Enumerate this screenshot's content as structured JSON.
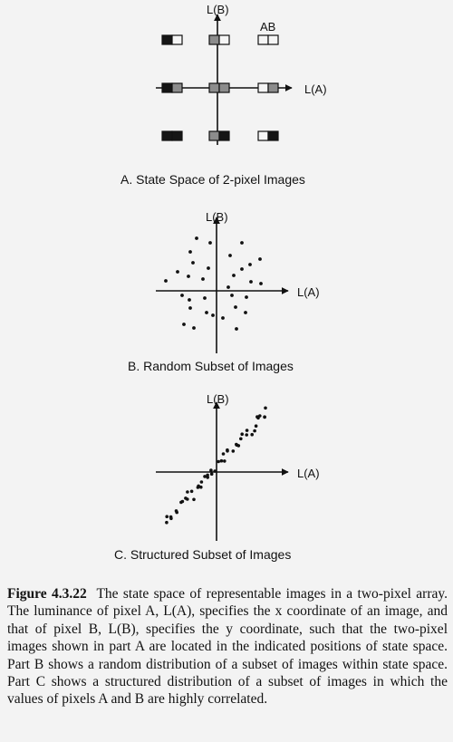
{
  "panels": {
    "a": {
      "caption": "A. State Space of 2-pixel Images",
      "x_axis_label": "L(A)",
      "y_axis_label": "L(B)",
      "pair_label": "AB",
      "levels": [
        "black",
        "gray",
        "white"
      ],
      "colors": {
        "black": "#151515",
        "gray": "#8c8c8c",
        "white": "#f5f5f5"
      },
      "grid_rows_top_to_bottom": [
        [
          [
            "black",
            "white"
          ],
          [
            "gray",
            "white"
          ],
          [
            "white",
            "white"
          ]
        ],
        [
          [
            "black",
            "gray"
          ],
          [
            "gray",
            "gray"
          ],
          [
            "white",
            "gray"
          ]
        ],
        [
          [
            "black",
            "black"
          ],
          [
            "gray",
            "black"
          ],
          [
            "white",
            "black"
          ]
        ]
      ]
    },
    "b": {
      "caption": "B. Random Subset of Images",
      "x_axis_label": "L(A)",
      "y_axis_label": "L(B)"
    },
    "c": {
      "caption": "C. Structured Subset of Images",
      "x_axis_label": "L(A)",
      "y_axis_label": "L(B)"
    }
  },
  "caption": {
    "figure_number": "Figure 4.3.22",
    "text": "The state space of representable images in a two-pixel array. The luminance of pixel A, L(A), specifies the x coordinate of an image, and that of pixel B, L(B), specifies the y coordinate, such that the two-pixel images shown in part A are located in the indicated positions of state space. Part B shows a random distribution of a subset of images within state space. Part C shows a structured distribution of a subset of images in which the values of pixels A and B are highly correlated."
  }
}
